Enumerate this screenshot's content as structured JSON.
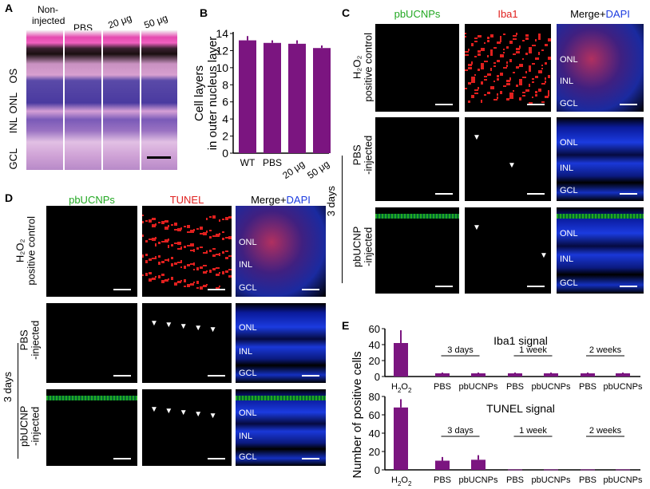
{
  "panels": {
    "A": "A",
    "B": "B",
    "C": "C",
    "D": "D",
    "E": "E"
  },
  "panelA": {
    "columns": [
      "Non-\ninjected",
      "PBS",
      "20 μg",
      "50 μg"
    ],
    "layers": [
      "OS",
      "ONL",
      "INL",
      "GCL"
    ]
  },
  "panelC": {
    "columns": [
      "pbUCNPs",
      "Iba1",
      "Merge+",
      "DAPI"
    ],
    "rows": [
      "H₂O₂\npositive control",
      "PBS\n-injected",
      "pbUCNP\n-injected"
    ],
    "group": "3 days",
    "layers": [
      "ONL",
      "INL",
      "GCL"
    ]
  },
  "panelD": {
    "columns": [
      "pbUCNPs",
      "TUNEL",
      "Merge+",
      "DAPI"
    ],
    "rows": [
      "H₂O₂\npositive control",
      "PBS\n-injected",
      "pbUCNP\n-injected"
    ],
    "group": "3 days",
    "layers": [
      "ONL",
      "INL",
      "GCL"
    ]
  },
  "colors": {
    "bar": "#7b1580",
    "green": "#22a822",
    "red": "#e0201e",
    "blue": "#1b3be0"
  },
  "chart_data": [
    {
      "type": "bar",
      "panel": "B",
      "categories": [
        "WT",
        "PBS",
        "20 μg",
        "50 μg"
      ],
      "values": [
        13.2,
        12.9,
        12.8,
        12.3
      ],
      "errors": [
        0.5,
        0.3,
        0.4,
        0.3
      ],
      "ylabel": "Cell layers\nin outer nucleus layer",
      "ylim": [
        0,
        14
      ],
      "yticks": [
        0,
        2,
        4,
        6,
        8,
        10,
        12,
        14
      ]
    },
    {
      "type": "bar",
      "panel": "E-top",
      "title": "Iba1 signal",
      "categories": [
        "H2O2",
        "PBS",
        "pbUCNPs",
        "PBS",
        "pbUCNPs",
        "PBS",
        "pbUCNPs"
      ],
      "values": [
        42,
        4,
        4,
        4,
        4,
        4,
        4
      ],
      "errors": [
        16,
        1,
        1,
        1,
        1,
        1,
        1
      ],
      "ylim": [
        0,
        60
      ],
      "yticks": [
        0,
        20,
        40,
        60
      ],
      "groups": [
        "3 days",
        "1 week",
        "2 weeks"
      ]
    },
    {
      "type": "bar",
      "panel": "E-bottom",
      "title": "TUNEL signal",
      "categories": [
        "H2O2",
        "PBS",
        "pbUCNPs",
        "PBS",
        "pbUCNPs",
        "PBS",
        "pbUCNPs"
      ],
      "values": [
        68,
        10,
        11,
        0.5,
        0.5,
        0.5,
        0.5
      ],
      "errors": [
        9,
        4,
        5,
        0,
        0,
        0,
        0
      ],
      "ylim": [
        0,
        80
      ],
      "yticks": [
        0,
        20,
        40,
        60,
        80
      ],
      "groups": [
        "3 days",
        "1 week",
        "2 weeks"
      ]
    }
  ],
  "panelE": {
    "ylabel": "Number of positive cells"
  }
}
